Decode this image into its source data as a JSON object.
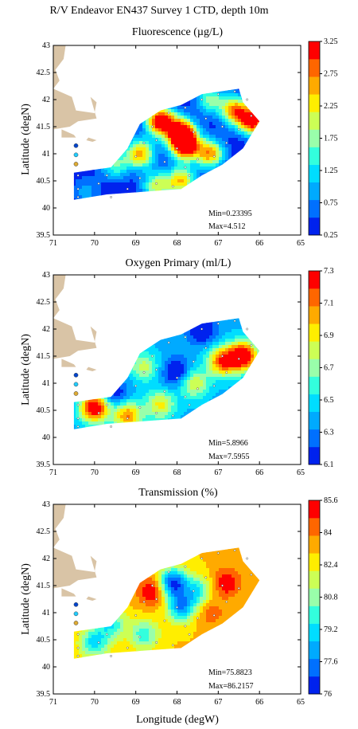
{
  "figure": {
    "title": "R/V Endeavor EN437 Survey 1 CTD, depth 10m",
    "xlabel": "Longitude (degW)"
  },
  "chart_data": [
    {
      "type": "heatmap",
      "title": "Fluorescence (µg/L)",
      "ylabel": "Latitude (degN)",
      "xlim": [
        71,
        65
      ],
      "ylim": [
        39.5,
        43
      ],
      "xticks": [
        "71",
        "70",
        "69",
        "68",
        "67",
        "66",
        "65"
      ],
      "yticks": [
        "39.5",
        "40",
        "40.5",
        "41",
        "41.5",
        "42",
        "42.5",
        "43"
      ],
      "colorbar": {
        "min": 0.25,
        "max": 3.25,
        "ticks": [
          "0.25",
          "0.75",
          "1.25",
          "1.75",
          "2.25",
          "2.75",
          "3.25"
        ],
        "colors": [
          "#0022ee",
          "#0070ff",
          "#00aaff",
          "#00ddff",
          "#33ffdd",
          "#99ffaa",
          "#ccff55",
          "#ffee00",
          "#ffaa00",
          "#ff6600",
          "#ff0000"
        ]
      },
      "stats": {
        "min": "Min=0.23395",
        "max": "Max=4.512"
      },
      "base_level": 0.3,
      "blobs": [
        {
          "x": 68.4,
          "y": 41.6,
          "v": 3.5
        },
        {
          "x": 67.9,
          "y": 41.4,
          "v": 3.2
        },
        {
          "x": 67.8,
          "y": 41.15,
          "v": 3.4
        },
        {
          "x": 66.15,
          "y": 41.6,
          "v": 3.3
        },
        {
          "x": 66.6,
          "y": 41.8,
          "v": 2.6
        },
        {
          "x": 68.9,
          "y": 41.0,
          "v": 2.6
        },
        {
          "x": 67.2,
          "y": 41.0,
          "v": 2.6
        },
        {
          "x": 69.5,
          "y": 40.8,
          "v": 1.6
        },
        {
          "x": 67.9,
          "y": 40.5,
          "v": 2.4
        },
        {
          "x": 68.5,
          "y": 40.4,
          "v": 2.0
        },
        {
          "x": 67.2,
          "y": 42.0,
          "v": 1.7
        },
        {
          "x": 70.2,
          "y": 40.3,
          "v": 0.9
        }
      ]
    },
    {
      "type": "heatmap",
      "title": "Oxygen Primary (ml/L)",
      "ylabel": "Latitude (degN)",
      "xlim": [
        71,
        65
      ],
      "ylim": [
        39.5,
        43
      ],
      "xticks": [
        "71",
        "70",
        "69",
        "68",
        "67",
        "66",
        "65"
      ],
      "yticks": [
        "39.5",
        "40",
        "40.5",
        "41",
        "41.5",
        "42",
        "42.5",
        "43"
      ],
      "colorbar": {
        "min": 6.1,
        "max": 7.3,
        "ticks": [
          "6.1",
          "6.3",
          "6.5",
          "6.7",
          "6.9",
          "7.1",
          "7.3"
        ],
        "colors": [
          "#0022ee",
          "#0070ff",
          "#00aaff",
          "#00ddff",
          "#33ffdd",
          "#99ffaa",
          "#ccff55",
          "#ffee00",
          "#ffaa00",
          "#ff6600",
          "#ff0000"
        ]
      },
      "stats": {
        "min": "Min=5.8966",
        "max": "Max=7.5955"
      },
      "base_level": 6.4,
      "blobs": [
        {
          "x": 66.4,
          "y": 41.5,
          "v": 7.45
        },
        {
          "x": 66.9,
          "y": 41.4,
          "v": 7.2
        },
        {
          "x": 70.0,
          "y": 40.55,
          "v": 7.4
        },
        {
          "x": 69.2,
          "y": 40.4,
          "v": 7.1
        },
        {
          "x": 68.4,
          "y": 40.6,
          "v": 6.9
        },
        {
          "x": 67.6,
          "y": 41.0,
          "v": 6.9
        },
        {
          "x": 68.8,
          "y": 41.3,
          "v": 6.8
        },
        {
          "x": 67.4,
          "y": 42.0,
          "v": 6.0
        },
        {
          "x": 68.0,
          "y": 41.2,
          "v": 6.0
        },
        {
          "x": 69.5,
          "y": 40.8,
          "v": 6.1
        }
      ]
    },
    {
      "type": "heatmap",
      "title": "Transmission (%)",
      "ylabel": "Latitude (degN)",
      "xlim": [
        71,
        65
      ],
      "ylim": [
        39.5,
        43
      ],
      "xticks": [
        "71",
        "70",
        "69",
        "68",
        "67",
        "66",
        "65"
      ],
      "yticks": [
        "39.5",
        "40",
        "40.5",
        "41",
        "41.5",
        "42",
        "42.5",
        "43"
      ],
      "colorbar": {
        "min": 76,
        "max": 85.6,
        "ticks": [
          "76",
          "77.6",
          "79.2",
          "80.8",
          "82.4",
          "84",
          "85.6"
        ],
        "colors": [
          "#0022ee",
          "#0070ff",
          "#00aaff",
          "#00ddff",
          "#33ffdd",
          "#99ffaa",
          "#ccff55",
          "#ffee00",
          "#ffaa00",
          "#ff6600",
          "#ff0000"
        ]
      },
      "stats": {
        "min": "Min=75.8823",
        "max": "Max=86.2157"
      },
      "base_level": 83.0,
      "blobs": [
        {
          "x": 68.1,
          "y": 41.55,
          "v": 76.5
        },
        {
          "x": 67.9,
          "y": 41.1,
          "v": 78.0
        },
        {
          "x": 67.5,
          "y": 41.4,
          "v": 79.5
        },
        {
          "x": 69.6,
          "y": 40.8,
          "v": 79.5
        },
        {
          "x": 70.0,
          "y": 40.45,
          "v": 79.0
        },
        {
          "x": 68.8,
          "y": 40.6,
          "v": 79.8
        },
        {
          "x": 68.6,
          "y": 41.4,
          "v": 85.9
        },
        {
          "x": 66.8,
          "y": 41.55,
          "v": 85.6
        },
        {
          "x": 67.2,
          "y": 41.0,
          "v": 84.5
        }
      ]
    }
  ]
}
